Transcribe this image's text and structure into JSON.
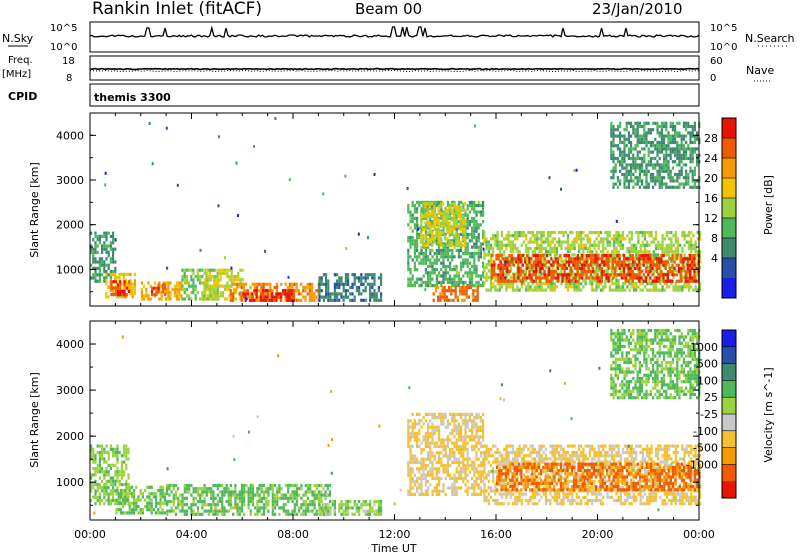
{
  "header": {
    "station": "Rankin Inlet (fitACF)",
    "beam": "Beam 00",
    "date": "23/Jan/2010"
  },
  "strip_labels": {
    "nsky": "N.Sky",
    "nsky_hi": "10^5",
    "nsky_lo": "10^0",
    "nsearch": "N.Search",
    "nsearch_hi": "10^5",
    "nsearch_lo": "10^0",
    "freq": "Freq.",
    "freq_unit": "[MHz]",
    "freq_hi": "18",
    "freq_lo": "8",
    "nave": "Nave",
    "nave_hi": "60",
    "nave_lo": "0",
    "cpid": "CPID",
    "program": "themis 3300"
  },
  "colors": {
    "power_scale": [
      "#1a1ee6",
      "#2a4fa8",
      "#3e8a6e",
      "#4fb85a",
      "#9bd23e",
      "#f2c400",
      "#f59a00",
      "#f05a00",
      "#e81400"
    ],
    "velocity_scale": [
      "#e81400",
      "#f05a00",
      "#f59a00",
      "#f5c030",
      "#c8c8c8",
      "#9bd23e",
      "#4fb85a",
      "#3e8a6e",
      "#2a4fa8",
      "#1a1ee6"
    ]
  },
  "chart_data": [
    {
      "type": "heatmap",
      "name": "power",
      "xlabel": "Time UT",
      "ylabel": "Slant Range [km]",
      "x_ticks": [
        "00:00",
        "04:00",
        "08:00",
        "12:00",
        "16:00",
        "20:00",
        "00:00"
      ],
      "xlim": [
        0,
        24
      ],
      "y_ticks": [
        1000,
        2000,
        3000,
        4000
      ],
      "ylim": [
        180,
        4500
      ],
      "colorbar": {
        "label": "Power [dB]",
        "ticks": [
          "28",
          "24",
          "20",
          "16",
          "12",
          "8",
          "4"
        ],
        "range": [
          0,
          32
        ]
      },
      "regions": [
        {
          "t0": 0.0,
          "t1": 1.0,
          "r0": 700,
          "r1": 1800,
          "value": 10
        },
        {
          "t0": 0.6,
          "t1": 1.8,
          "r0": 350,
          "r1": 900,
          "value": 20
        },
        {
          "t0": 0.8,
          "t1": 1.5,
          "r0": 400,
          "r1": 700,
          "value": 28
        },
        {
          "t0": 2.0,
          "t1": 3.6,
          "r0": 300,
          "r1": 700,
          "value": 22
        },
        {
          "t0": 2.4,
          "t1": 3.0,
          "r0": 400,
          "r1": 620,
          "value": 28
        },
        {
          "t0": 3.6,
          "t1": 5.0,
          "r0": 300,
          "r1": 1000,
          "value": 14
        },
        {
          "t0": 4.5,
          "t1": 6.0,
          "r0": 300,
          "r1": 1000,
          "value": 18
        },
        {
          "t0": 5.5,
          "t1": 9.0,
          "r0": 200,
          "r1": 700,
          "value": 24
        },
        {
          "t0": 6.0,
          "t1": 8.0,
          "r0": 200,
          "r1": 550,
          "value": 29
        },
        {
          "t0": 9.0,
          "t1": 11.5,
          "r0": 200,
          "r1": 900,
          "value": 8
        },
        {
          "t0": 12.5,
          "t1": 15.5,
          "r0": 600,
          "r1": 2500,
          "value": 12
        },
        {
          "t0": 13.0,
          "t1": 14.8,
          "r0": 1500,
          "r1": 2500,
          "value": 18
        },
        {
          "t0": 13.5,
          "t1": 15.3,
          "r0": 200,
          "r1": 600,
          "value": 26
        },
        {
          "t0": 15.5,
          "t1": 24.0,
          "r0": 500,
          "r1": 1800,
          "value": 16
        },
        {
          "t0": 15.8,
          "t1": 24.0,
          "r0": 700,
          "r1": 1300,
          "value": 28
        },
        {
          "t0": 20.5,
          "t1": 24.0,
          "r0": 2800,
          "r1": 4300,
          "value": 10
        }
      ]
    },
    {
      "type": "heatmap",
      "name": "velocity",
      "xlabel": "Time UT",
      "ylabel": "Slant Range [km]",
      "x_ticks": [
        "00:00",
        "04:00",
        "08:00",
        "12:00",
        "16:00",
        "20:00",
        "00:00"
      ],
      "xlim": [
        0,
        24
      ],
      "y_ticks": [
        1000,
        2000,
        3000,
        4000
      ],
      "ylim": [
        180,
        4500
      ],
      "colorbar": {
        "label": "Velocity [m s^-1]",
        "ticks": [
          "1000",
          "500",
          "100",
          "25",
          "-25",
          "-100",
          "-500",
          "-1000"
        ],
        "range": [
          -1250,
          1250
        ]
      },
      "regions": [
        {
          "t0": 0.0,
          "t1": 1.5,
          "r0": 500,
          "r1": 1800,
          "value": 200
        },
        {
          "t0": 1.0,
          "t1": 3.0,
          "r0": 300,
          "r1": 900,
          "value": 300
        },
        {
          "t0": 3.0,
          "t1": 9.5,
          "r0": 200,
          "r1": 900,
          "value": 300
        },
        {
          "t0": 9.0,
          "t1": 11.5,
          "r0": 200,
          "r1": 600,
          "value": 150
        },
        {
          "t0": 12.5,
          "t1": 15.5,
          "r0": 700,
          "r1": 2500,
          "value": -300
        },
        {
          "t0": 15.5,
          "t1": 24.0,
          "r0": 500,
          "r1": 1800,
          "value": -300
        },
        {
          "t0": 16.0,
          "t1": 24.0,
          "r0": 800,
          "r1": 1400,
          "value": -800
        },
        {
          "t0": 20.5,
          "t1": 24.0,
          "r0": 2800,
          "r1": 4300,
          "value": 300
        }
      ]
    }
  ]
}
